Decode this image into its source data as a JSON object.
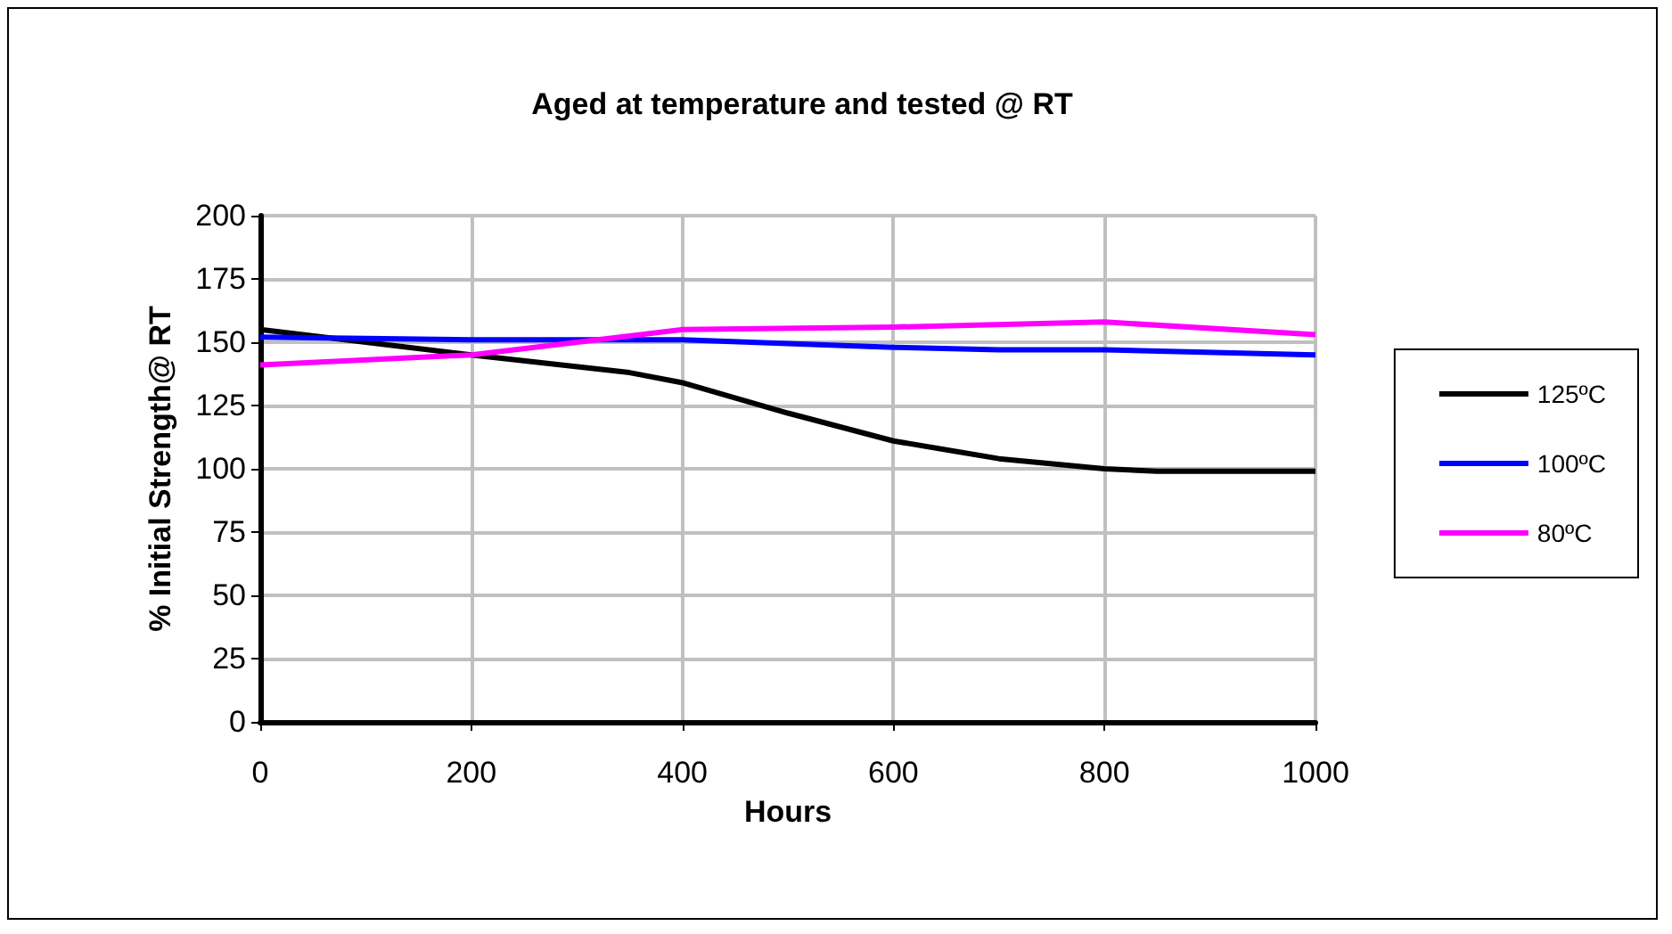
{
  "chart_data": {
    "type": "line",
    "title": "Aged at temperature and tested @ RT",
    "xlabel": "Hours",
    "ylabel": "% Initial Strength@ RT",
    "xlim": [
      0,
      1000
    ],
    "xticks": [
      0,
      200,
      400,
      600,
      800,
      1000
    ],
    "ylim": [
      0,
      200
    ],
    "yticks": [
      0,
      25,
      50,
      75,
      100,
      125,
      150,
      175,
      200
    ],
    "grid": true,
    "legend": "right",
    "marker": "none",
    "line_style": "solid",
    "series": [
      {
        "name": "125ºC",
        "color": "#000000",
        "x": [
          0,
          200,
          350,
          400,
          500,
          600,
          700,
          800,
          850,
          1000
        ],
        "values": [
          155,
          145,
          138,
          134,
          122,
          111,
          104,
          100,
          99,
          99
        ]
      },
      {
        "name": "100ºC",
        "color": "#0000ff",
        "x": [
          0,
          200,
          400,
          600,
          700,
          800,
          1000
        ],
        "values": [
          152,
          151,
          151,
          148,
          147,
          147,
          145
        ]
      },
      {
        "name": "80ºC",
        "color": "#ff00ff",
        "x": [
          0,
          200,
          400,
          600,
          800,
          1000
        ],
        "values": [
          141,
          145,
          155,
          156,
          158,
          153
        ]
      }
    ]
  }
}
